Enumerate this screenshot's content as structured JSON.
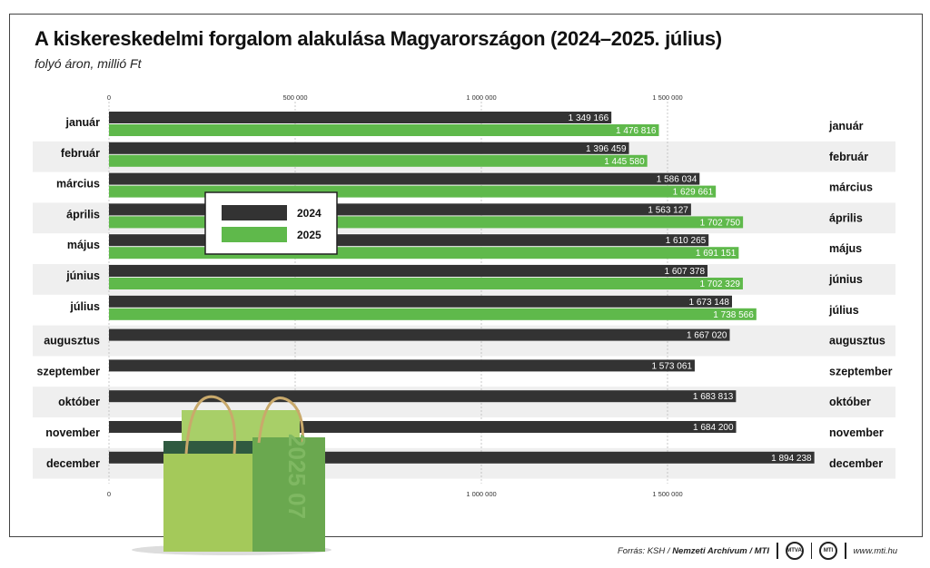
{
  "header": {
    "title": "A kiskereskedelmi forgalom alakulása Magyarországon (2024–2025. július)",
    "subtitle": "folyó áron, millió Ft"
  },
  "footer": {
    "source_prefix": "Forrás: KSH / ",
    "source_bold": "Nemzeti Archívum / MTI",
    "logo1": "MTVA",
    "logo2": "MTI",
    "website": "www.mti.hu"
  },
  "bag_text": "2025 07",
  "colors": {
    "series_2024": "#333333",
    "series_2025": "#5fb94b",
    "stripe": "#efefef"
  },
  "chart_data": {
    "type": "bar",
    "orientation": "horizontal",
    "categories": [
      "január",
      "február",
      "március",
      "április",
      "május",
      "június",
      "július",
      "augusztus",
      "szeptember",
      "október",
      "november",
      "december"
    ],
    "series": [
      {
        "name": "2024",
        "values": [
          1349166,
          1396459,
          1586034,
          1563127,
          1610265,
          1607378,
          1673148,
          1667020,
          1573061,
          1683813,
          1684200,
          1894238
        ],
        "labels": [
          "1 349 166",
          "1 396 459",
          "1 586 034",
          "1 563 127",
          "1 610 265",
          "1 607 378",
          "1 673 148",
          "1 667 020",
          "1 573 061",
          "1 683 813",
          "1 684 200",
          "1 894 238"
        ]
      },
      {
        "name": "2025",
        "values": [
          1476816,
          1445580,
          1629661,
          1702750,
          1691151,
          1702329,
          1738566,
          null,
          null,
          null,
          null,
          null
        ],
        "labels": [
          "1 476 816",
          "1 445 580",
          "1 629 661",
          "1 702 750",
          "1 691 151",
          "1 702 329",
          "1 738 566",
          "",
          "",
          "",
          "",
          ""
        ]
      }
    ],
    "xlim": [
      0,
      1900000
    ],
    "ticks_top": [
      0,
      500000,
      1000000,
      1500000
    ],
    "tick_labels_top": [
      "0",
      "500 000",
      "1 000 000",
      "1 500 000"
    ],
    "ticks_bottom": [
      0,
      1000000,
      1500000
    ],
    "tick_labels_bottom": [
      "0",
      "1 000 000",
      "1 500 000"
    ],
    "grid": true,
    "legend_position": "upper-left"
  }
}
